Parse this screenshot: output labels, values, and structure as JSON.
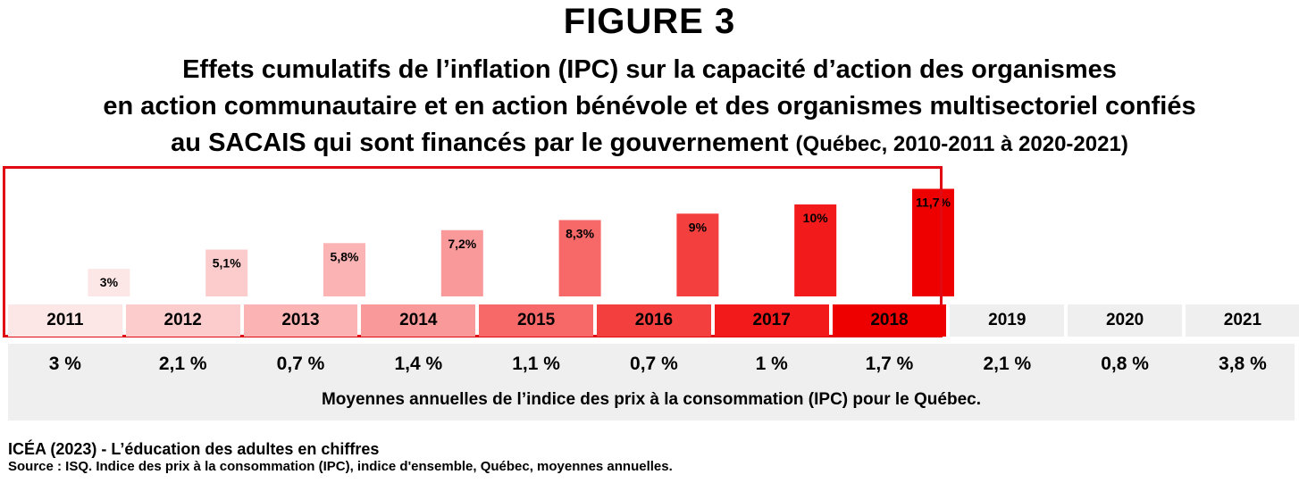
{
  "figure_label": "FIGURE 3",
  "title_lines": [
    "Effets cumulatifs de l’inflation (IPC) sur la capacité d’action des organismes",
    "en action communautaire et en action bénévole et des organismes multisectoriel confiés",
    "au SACAIS qui sont financés par le gouvernement"
  ],
  "title_paren": "(Québec, 2010-2011 à 2020-2021)",
  "chart_data": {
    "type": "bar",
    "title": "Effets cumulatifs de l’inflation (IPC) sur la capacité d’action des organismes en action communautaire et en action bénévole et des organismes multisectoriel confiés au SACAIS qui sont financés par le gouvernement (Québec, 2010-2011 à 2020-2021)",
    "categories": [
      "2011",
      "2012",
      "2013",
      "2014",
      "2015",
      "2016",
      "2017",
      "2018"
    ],
    "values": [
      3,
      5.1,
      5.8,
      7.2,
      8.3,
      9,
      10,
      11.7
    ],
    "data_labels": [
      "3%",
      "5,1%",
      "5,8%",
      "7,2%",
      "8,3%",
      "9%",
      "10%",
      "11,7%"
    ],
    "bar_colors": [
      "#fde6e6",
      "#fccccc",
      "#fbb3b3",
      "#f99999",
      "#f76868",
      "#f43f3f",
      "#f21a1a",
      "#ee0000"
    ],
    "ylim": [
      0,
      12
    ]
  },
  "years": [
    "2011",
    "2012",
    "2013",
    "2014",
    "2015",
    "2016",
    "2017",
    "2018",
    "2019",
    "2020",
    "2021"
  ],
  "year_colors": [
    "#fde6e6",
    "#fccccc",
    "#fbb3b3",
    "#f99999",
    "#f76868",
    "#f43f3f",
    "#f21a1a",
    "#ee0000",
    "#efefef",
    "#efefef",
    "#efefef"
  ],
  "highlight_color": "#e00b12",
  "annual_ipc": [
    "3 %",
    "2,1 %",
    "0,7 %",
    "1,4 %",
    "1,1 %",
    "0,7 %",
    "1 %",
    "1,7 %",
    "2,1 %",
    "0,8 %",
    "3,8 %"
  ],
  "annual_ipc_caption": "Moyennes annuelles de l’indice des prix à la consommation (IPC) pour le Québec.",
  "footer": {
    "org": "ICÉA (2023) - L’éducation des adultes en chiffres",
    "source": "Source : ISQ. Indice des prix à la consommation (IPC), indice d'ensemble, Québec, moyennes annuelles."
  }
}
